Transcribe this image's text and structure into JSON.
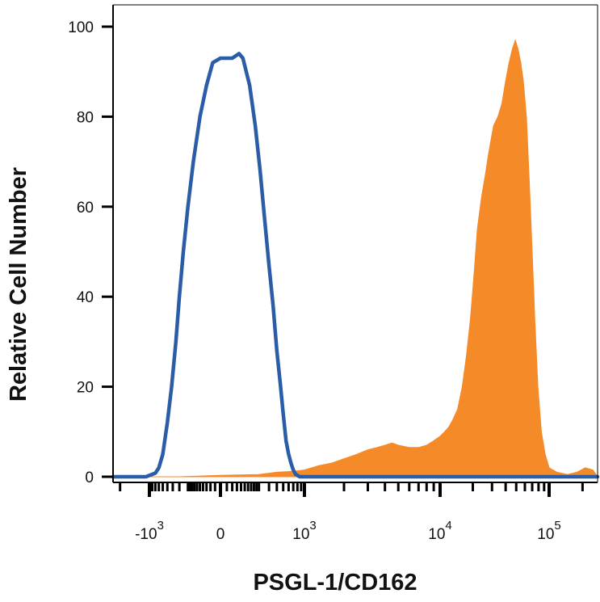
{
  "chart_data": {
    "type": "area",
    "title": "",
    "xlabel": "PSGL-1/CD162",
    "ylabel": "Relative Cell Number",
    "xscale": "biexponential",
    "ylim": [
      0,
      100
    ],
    "grid": false,
    "legend": "none",
    "y_ticks": [
      0,
      20,
      40,
      60,
      80,
      100
    ],
    "x_ticks": [
      {
        "value": -1000,
        "base": "-10",
        "exp": "3"
      },
      {
        "value": 0,
        "base": "0",
        "exp": ""
      },
      {
        "value": 1000,
        "base": "10",
        "exp": "3"
      },
      {
        "value": 10000,
        "base": "10",
        "exp": "4"
      },
      {
        "value": 100000,
        "base": "10",
        "exp": "5"
      }
    ],
    "series": [
      {
        "style": "outline",
        "color": "#2a5ca8",
        "points": [
          [
            -1650,
            0
          ],
          [
            -1050,
            0
          ],
          [
            -800,
            0.8
          ],
          [
            -700,
            2
          ],
          [
            -600,
            5
          ],
          [
            -500,
            12
          ],
          [
            -420,
            20
          ],
          [
            -350,
            30
          ],
          [
            -300,
            40
          ],
          [
            -250,
            50
          ],
          [
            -200,
            60
          ],
          [
            -150,
            70
          ],
          [
            -100,
            80
          ],
          [
            -60,
            87
          ],
          [
            -30,
            92
          ],
          [
            0,
            93
          ],
          [
            40,
            93
          ],
          [
            70,
            94
          ],
          [
            90,
            93
          ],
          [
            130,
            87
          ],
          [
            170,
            78
          ],
          [
            210,
            68
          ],
          [
            250,
            58
          ],
          [
            300,
            47
          ],
          [
            350,
            38
          ],
          [
            400,
            28
          ],
          [
            450,
            21
          ],
          [
            500,
            14
          ],
          [
            550,
            8
          ],
          [
            600,
            5
          ],
          [
            650,
            3
          ],
          [
            700,
            1.5
          ],
          [
            760,
            0.5
          ],
          [
            860,
            0
          ],
          [
            100000,
            0
          ],
          [
            180000,
            0
          ]
        ]
      },
      {
        "style": "filled",
        "color": "#f58a29",
        "points": [
          [
            -1650,
            0
          ],
          [
            -1100,
            0
          ],
          [
            -300,
            0
          ],
          [
            0,
            0.3
          ],
          [
            200,
            0.5
          ],
          [
            400,
            1
          ],
          [
            700,
            1.2
          ],
          [
            1000,
            1.5
          ],
          [
            1300,
            2.5
          ],
          [
            1600,
            3
          ],
          [
            2000,
            4
          ],
          [
            2500,
            5
          ],
          [
            3000,
            6
          ],
          [
            3500,
            6.5
          ],
          [
            4000,
            7
          ],
          [
            4500,
            7.5
          ],
          [
            5000,
            7
          ],
          [
            6000,
            6.5
          ],
          [
            7000,
            6.5
          ],
          [
            8000,
            7
          ],
          [
            9000,
            8
          ],
          [
            10000,
            9
          ],
          [
            11000,
            10
          ],
          [
            12000,
            11
          ],
          [
            13000,
            12.5
          ],
          [
            14500,
            15
          ],
          [
            16000,
            20
          ],
          [
            17500,
            27
          ],
          [
            19000,
            35
          ],
          [
            20500,
            45
          ],
          [
            22000,
            55
          ],
          [
            24000,
            62
          ],
          [
            26000,
            67
          ],
          [
            28000,
            72
          ],
          [
            31000,
            78
          ],
          [
            34000,
            80
          ],
          [
            37000,
            83
          ],
          [
            40000,
            88
          ],
          [
            43000,
            92
          ],
          [
            46000,
            95
          ],
          [
            49000,
            97
          ],
          [
            52000,
            95
          ],
          [
            55000,
            92
          ],
          [
            58000,
            88
          ],
          [
            62000,
            80
          ],
          [
            66000,
            65
          ],
          [
            70000,
            50
          ],
          [
            74000,
            35
          ],
          [
            79000,
            20
          ],
          [
            85000,
            10
          ],
          [
            92000,
            5
          ],
          [
            100000,
            2
          ],
          [
            110000,
            1
          ],
          [
            125000,
            0.5
          ],
          [
            140000,
            1
          ],
          [
            155000,
            2
          ],
          [
            170000,
            1.5
          ],
          [
            180000,
            0
          ]
        ]
      }
    ]
  }
}
